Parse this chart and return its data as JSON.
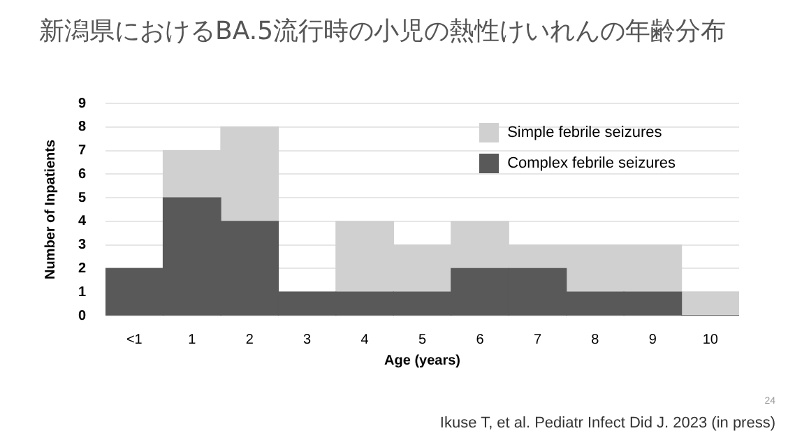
{
  "chart_data": {
    "type": "bar",
    "title": "新潟県におけるBA.5流行時の小児の熱性けいれんの年齢分布",
    "xlabel": "Age (years)",
    "ylabel": "Number of Inpatients",
    "categories": [
      "<1",
      "1",
      "2",
      "3",
      "4",
      "5",
      "6",
      "7",
      "8",
      "9",
      "10"
    ],
    "series": [
      {
        "name": "Complex febrile seizures",
        "color": "#595959",
        "values": [
          2,
          5,
          4,
          1,
          1,
          1,
          2,
          2,
          1,
          1,
          0
        ]
      },
      {
        "name": "Simple febrile seizures",
        "color": "#d0d0d0",
        "values": [
          0,
          2,
          4,
          0,
          3,
          2,
          2,
          1,
          2,
          2,
          1
        ]
      }
    ],
    "stacked": true,
    "ylim": [
      0,
      9
    ],
    "yticks": [
      0,
      1,
      2,
      3,
      4,
      5,
      6,
      7,
      8,
      9
    ],
    "grid": "y",
    "legend": "top right",
    "annotations": [
      "24",
      "Ikuse T, et al. Pediatr Infect Did J. 2023 (in press)"
    ]
  }
}
